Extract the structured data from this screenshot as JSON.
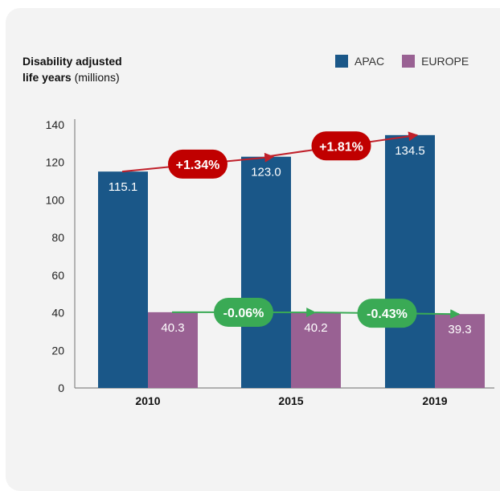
{
  "chart_data": {
    "type": "bar",
    "ylabel_bold_line1": "Disability adjusted",
    "ylabel_bold_line2": "life years",
    "ylabel_unit": "(millions)",
    "categories": [
      "2010",
      "2015",
      "2019"
    ],
    "series": [
      {
        "name": "APAC",
        "color": "#1a5788",
        "values": [
          115.1,
          123.0,
          134.5
        ],
        "labels": [
          "115.1",
          "123.0",
          "134.5"
        ]
      },
      {
        "name": "EUROPE",
        "color": "#996193",
        "values": [
          40.3,
          40.2,
          39.3
        ],
        "labels": [
          "40.3",
          "40.2",
          "39.3"
        ]
      }
    ],
    "ylim": [
      0,
      140
    ],
    "yticks": [
      0,
      20,
      40,
      60,
      80,
      100,
      120,
      140
    ],
    "legend_position": "top-right",
    "grid": false,
    "annotations": [
      {
        "series": "APAC",
        "from": "2010",
        "to": "2015",
        "text": "+1.34%",
        "color": "#c00000",
        "arrow_color": "#c0202a"
      },
      {
        "series": "APAC",
        "from": "2015",
        "to": "2019",
        "text": "+1.81%",
        "color": "#c00000",
        "arrow_color": "#c0202a"
      },
      {
        "series": "EUROPE",
        "from": "2010",
        "to": "2015",
        "text": "-0.06%",
        "color": "#3aaa55",
        "arrow_color": "#3aaa55"
      },
      {
        "series": "EUROPE",
        "from": "2015",
        "to": "2019",
        "text": "-0.43%",
        "color": "#3aaa55",
        "arrow_color": "#3aaa55"
      }
    ]
  }
}
